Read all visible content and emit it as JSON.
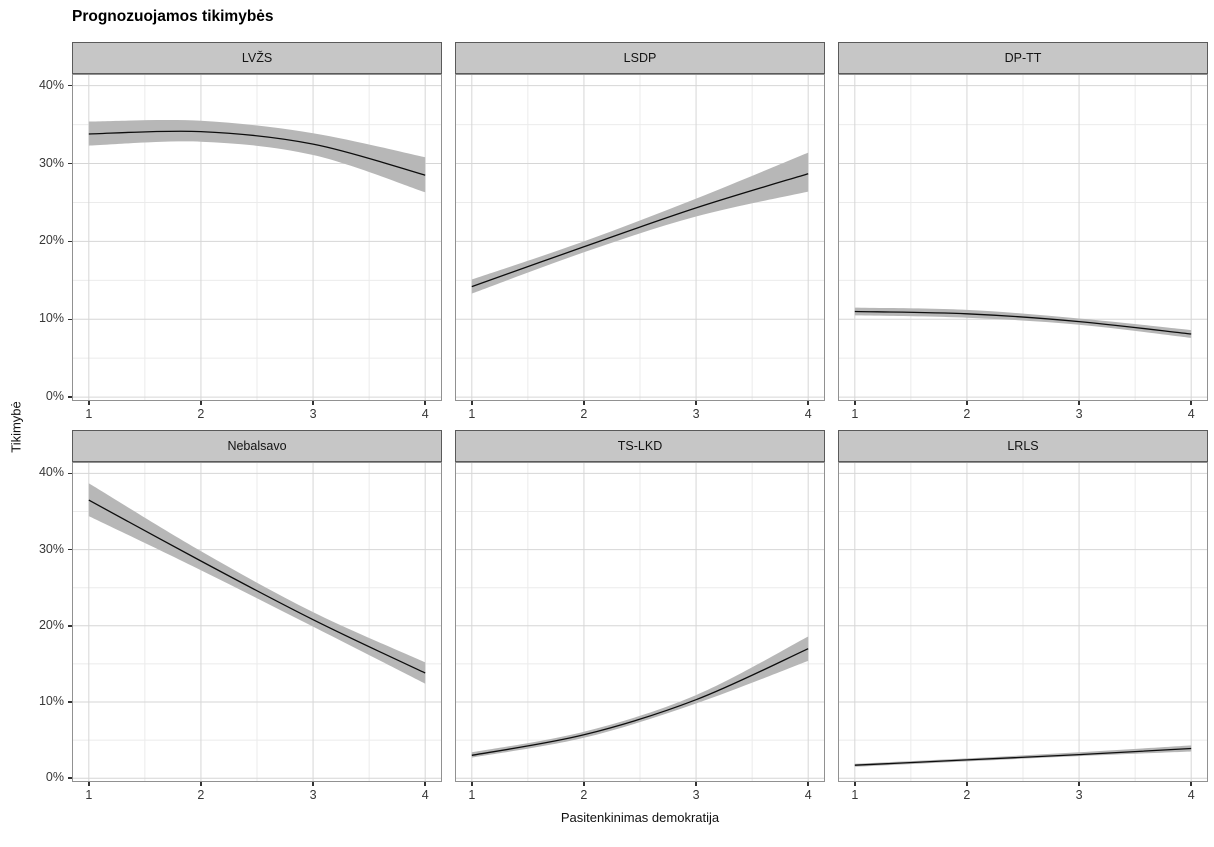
{
  "title": "Prognozuojamos tikimybės",
  "axes": {
    "x_title": "Pasitenkinimas demokratija",
    "y_title": "Tikimybė",
    "x_tick_labels": [
      "1",
      "2",
      "3",
      "4"
    ],
    "y_tick_labels": [
      "40%",
      "30%",
      "20%",
      "10%",
      "0%"
    ]
  },
  "colors": {
    "ribbon": "#b7b7b7",
    "line": "#0d0d0d",
    "strip_fill": "#c6c6c6",
    "strip_border": "#5a5a5a",
    "panel_border": "#919191",
    "grid_major": "#d6d6d6",
    "grid_minor": "#ebebeb",
    "tick_mark": "#333333"
  },
  "chart_data": {
    "type": "line",
    "title": "Prognozuojamos tikimybės",
    "xlabel": "Pasitenkinimas demokratija",
    "ylabel": "Tikimybė",
    "x": [
      1,
      2,
      3,
      4
    ],
    "x_ticks": [
      1,
      2,
      3,
      4
    ],
    "y_ticks_percent": [
      0,
      10,
      20,
      30,
      40
    ],
    "xlim": [
      0.85,
      4.15
    ],
    "ylim_percent": [
      -0.5,
      41.5
    ],
    "grid": true,
    "legend": "none",
    "note": "y, lo, hi are percentages; lo/hi are the gray confidence ribbon bounds",
    "facets": [
      {
        "label": "LVŽS",
        "y": [
          33.8,
          34.1,
          32.5,
          28.5
        ],
        "lo": [
          32.3,
          32.8,
          31.1,
          26.3
        ],
        "hi": [
          35.4,
          35.5,
          33.9,
          30.8
        ]
      },
      {
        "label": "LSDP",
        "y": [
          14.2,
          19.3,
          24.3,
          28.7
        ],
        "lo": [
          13.3,
          18.6,
          23.2,
          26.4
        ],
        "hi": [
          15.1,
          20.0,
          25.5,
          31.4
        ]
      },
      {
        "label": "DP-TT",
        "y": [
          11.0,
          10.7,
          9.7,
          8.1
        ],
        "lo": [
          10.5,
          10.2,
          9.3,
          7.6
        ],
        "hi": [
          11.5,
          11.2,
          10.1,
          8.6
        ]
      },
      {
        "label": "Nebalsavo",
        "y": [
          36.5,
          28.5,
          20.8,
          13.8
        ],
        "lo": [
          34.4,
          27.3,
          19.9,
          12.4
        ],
        "hi": [
          38.7,
          29.8,
          21.8,
          15.2
        ]
      },
      {
        "label": "TS-LKD",
        "y": [
          3.0,
          5.7,
          10.3,
          17.0
        ],
        "lo": [
          2.7,
          5.3,
          9.8,
          15.4
        ],
        "hi": [
          3.4,
          6.1,
          10.9,
          18.6
        ]
      },
      {
        "label": "LRLS",
        "y": [
          1.7,
          2.4,
          3.1,
          3.9
        ],
        "lo": [
          1.5,
          2.2,
          2.9,
          3.5
        ],
        "hi": [
          1.9,
          2.6,
          3.4,
          4.3
        ]
      }
    ]
  }
}
